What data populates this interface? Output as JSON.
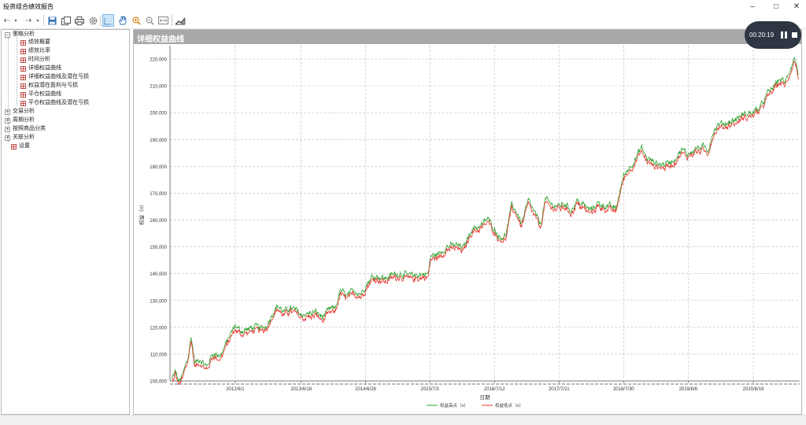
{
  "window": {
    "title": "投资组合绩效报告"
  },
  "tree": {
    "root": {
      "label": "策略分析",
      "children": [
        "绩效概要",
        "绩效比率",
        "时间分析",
        "详细权益曲线",
        "详细权益曲线及潜在亏损",
        "权益潜在盈利与亏损",
        "平仓权益曲线",
        "平仓权益曲线及潜在亏损"
      ]
    },
    "groups": [
      "交易分析",
      "周期分析",
      "按照商品分类",
      "关联分析"
    ],
    "settings": "设置"
  },
  "panel": {
    "title": "详细权益曲线"
  },
  "recorder": {
    "time": "00:20:19"
  },
  "colors": {
    "high": "#2ca02c",
    "low": "#e8332a",
    "header": "#a8a8a8"
  },
  "chart_data": {
    "type": "line",
    "xlabel": "日期",
    "ylabel": "权益（¤）",
    "x_ticks": [
      "2012/6/1",
      "2013/6/18",
      "2014/6/26",
      "2015/7/3",
      "2016/7/12",
      "2017/7/21",
      "2018/7/30",
      "2019/8/8",
      "2020/8/19"
    ],
    "y_ticks": [
      "100,000",
      "110,000",
      "120,000",
      "130,000",
      "140,000",
      "150,000",
      "160,000",
      "170,000",
      "180,000",
      "190,000",
      "200,000",
      "210,000",
      "220,000"
    ],
    "ylim": [
      100000,
      225000
    ],
    "grid": true,
    "legend_position": "bottom",
    "series": [
      {
        "name": "权益高点（¤）",
        "color": "#2ca02c"
      },
      {
        "name": "权益低点（¤）",
        "color": "#e8332a"
      }
    ],
    "anchors": [
      [
        "2011/6/1",
        100000
      ],
      [
        "2011/6/20",
        103000
      ],
      [
        "2011/7/10",
        99000
      ],
      [
        "2011/8/1",
        101500
      ],
      [
        "2011/9/1",
        108000
      ],
      [
        "2011/9/20",
        116000
      ],
      [
        "2011/10/10",
        106000
      ],
      [
        "2011/11/10",
        107500
      ],
      [
        "2011/12/20",
        104500
      ],
      [
        "2012/1/20",
        109500
      ],
      [
        "2012/3/10",
        109000
      ],
      [
        "2012/4/20",
        115000
      ],
      [
        "2012/6/1",
        120000
      ],
      [
        "2012/7/1",
        118000
      ],
      [
        "2012/8/10",
        118500
      ],
      [
        "2012/9/20",
        119500
      ],
      [
        "2012/11/1",
        119000
      ],
      [
        "2012/12/1",
        120000
      ],
      [
        "2013/1/1",
        124500
      ],
      [
        "2013/2/1",
        127500
      ],
      [
        "2013/3/10",
        125000
      ],
      [
        "2013/4/10",
        126500
      ],
      [
        "2013/5/10",
        126000
      ],
      [
        "2013/6/18",
        124000
      ],
      [
        "2013/8/1",
        124500
      ],
      [
        "2013/9/15",
        125000
      ],
      [
        "2013/10/20",
        123000
      ],
      [
        "2013/12/1",
        126000
      ],
      [
        "2014/1/1",
        126500
      ],
      [
        "2014/2/1",
        133000
      ],
      [
        "2014/3/10",
        131000
      ],
      [
        "2014/4/20",
        133000
      ],
      [
        "2014/6/1",
        132000
      ],
      [
        "2014/6/26",
        135000
      ],
      [
        "2014/8/1",
        138000
      ],
      [
        "2014/9/1",
        138500
      ],
      [
        "2014/10/15",
        137500
      ],
      [
        "2014/12/1",
        139000
      ],
      [
        "2015/1/15",
        139500
      ],
      [
        "2015/3/1",
        138500
      ],
      [
        "2015/5/1",
        139000
      ],
      [
        "2015/6/25",
        139500
      ],
      [
        "2015/7/8",
        146000
      ],
      [
        "2015/8/20",
        146500
      ],
      [
        "2015/10/10",
        149500
      ],
      [
        "2015/12/1",
        150000
      ],
      [
        "2016/1/15",
        149000
      ],
      [
        "2016/3/1",
        156000
      ],
      [
        "2016/5/1",
        157500
      ],
      [
        "2016/6/1",
        160000
      ],
      [
        "2016/7/12",
        156000
      ],
      [
        "2016/8/10",
        153000
      ],
      [
        "2016/9/15",
        153500
      ],
      [
        "2016/10/20",
        165000
      ],
      [
        "2016/11/20",
        162000
      ],
      [
        "2016/12/15",
        158000
      ],
      [
        "2017/1/25",
        166500
      ],
      [
        "2017/3/1",
        162000
      ],
      [
        "2017/4/5",
        157500
      ],
      [
        "2017/5/1",
        167000
      ],
      [
        "2017/6/10",
        165000
      ],
      [
        "2017/7/21",
        164500
      ],
      [
        "2017/8/20",
        165500
      ],
      [
        "2017/10/1",
        163000
      ],
      [
        "2017/11/1",
        166500
      ],
      [
        "2017/12/10",
        165000
      ],
      [
        "2018/1/15",
        163000
      ],
      [
        "2018/3/1",
        165500
      ],
      [
        "2018/5/1",
        164500
      ],
      [
        "2018/6/15",
        163500
      ],
      [
        "2018/7/30",
        176000
      ],
      [
        "2018/9/1",
        179000
      ],
      [
        "2018/10/10",
        182500
      ],
      [
        "2018/11/10",
        186500
      ],
      [
        "2018/12/10",
        182500
      ],
      [
        "2019/1/20",
        181000
      ],
      [
        "2019/3/1",
        180000
      ],
      [
        "2019/4/10",
        180500
      ],
      [
        "2019/5/20",
        182000
      ],
      [
        "2019/7/1",
        185500
      ],
      [
        "2019/8/8",
        184000
      ],
      [
        "2019/9/20",
        186000
      ],
      [
        "2019/11/1",
        186500
      ],
      [
        "2019/12/1",
        185500
      ],
      [
        "2020/1/1",
        192500
      ],
      [
        "2020/2/1",
        195000
      ],
      [
        "2020/3/15",
        195500
      ],
      [
        "2020/5/1",
        196500
      ],
      [
        "2020/6/15",
        198500
      ],
      [
        "2020/8/19",
        199500
      ],
      [
        "2020/10/1",
        201500
      ],
      [
        "2020/11/10",
        206500
      ],
      [
        "2020/12/20",
        209500
      ],
      [
        "2021/1/20",
        212000
      ],
      [
        "2021/2/20",
        210500
      ],
      [
        "2021/3/20",
        215500
      ],
      [
        "2021/4/15",
        220000
      ],
      [
        "2021/5/10",
        213500
      ]
    ]
  }
}
